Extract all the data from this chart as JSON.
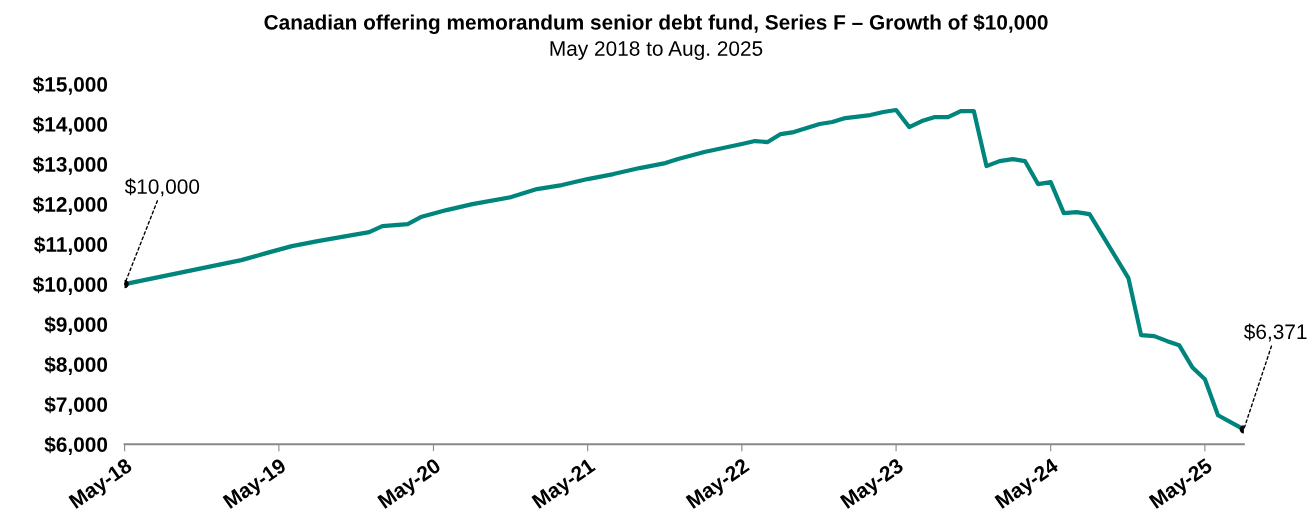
{
  "chart_data": {
    "type": "line",
    "title": "Canadian offering memorandum senior debt fund, Series F – Growth of $10,000",
    "subtitle": "May 2018 to Aug. 2025",
    "x": [
      "2018-05",
      "2019-02",
      "2019-04",
      "2019-06",
      "2019-08",
      "2019-12",
      "2020-01",
      "2020-03",
      "2020-04",
      "2020-06",
      "2020-08",
      "2020-11",
      "2021-01",
      "2021-03",
      "2021-05",
      "2021-07",
      "2021-09",
      "2021-11",
      "2021-12",
      "2022-02",
      "2022-05",
      "2022-06",
      "2022-07",
      "2022-08",
      "2022-09",
      "2022-11",
      "2022-12",
      "2023-01",
      "2023-03",
      "2023-04",
      "2023-05",
      "2023-06",
      "2023-07",
      "2023-08",
      "2023-09",
      "2023-10",
      "2023-11",
      "2023-12",
      "2024-01",
      "2024-02",
      "2024-03",
      "2024-04",
      "2024-05",
      "2024-06",
      "2024-07",
      "2024-08",
      "2024-11",
      "2024-12",
      "2025-01",
      "2025-02",
      "2025-03",
      "2025-04",
      "2025-05",
      "2025-06",
      "2025-08"
    ],
    "series": [
      {
        "color": "#00857c",
        "values": [
          10000,
          10600,
          10775,
          10950,
          11075,
          11300,
          11450,
          11500,
          11675,
          11850,
          12000,
          12175,
          12375,
          12475,
          12625,
          12750,
          12900,
          13025,
          13125,
          13300,
          13500,
          13575,
          13550,
          13750,
          13800,
          14000,
          14050,
          14150,
          14225,
          14300,
          14350,
          13925,
          14075,
          14175,
          14175,
          14325,
          14325,
          12950,
          13075,
          13125,
          13075,
          12500,
          12550,
          11775,
          11800,
          11750,
          10150,
          8725,
          8700,
          8575,
          8475,
          7925,
          7625,
          6725,
          6371
        ]
      }
    ],
    "xlim": [
      "2018-05",
      "2025-08"
    ],
    "xticks": [
      {
        "value": "2018-05",
        "label": "May-18"
      },
      {
        "value": "2019-05",
        "label": "May-19"
      },
      {
        "value": "2020-05",
        "label": "May-20"
      },
      {
        "value": "2021-05",
        "label": "May-21"
      },
      {
        "value": "2022-05",
        "label": "May-22"
      },
      {
        "value": "2023-05",
        "label": "May-23"
      },
      {
        "value": "2024-05",
        "label": "May-24"
      },
      {
        "value": "2025-05",
        "label": "May-25"
      }
    ],
    "ylim": [
      6000,
      15000
    ],
    "yticks": [
      {
        "value": 6000,
        "label": "$6,000"
      },
      {
        "value": 7000,
        "label": "$7,000"
      },
      {
        "value": 8000,
        "label": "$8,000"
      },
      {
        "value": 9000,
        "label": "$9,000"
      },
      {
        "value": 10000,
        "label": "$10,000"
      },
      {
        "value": 11000,
        "label": "$11,000"
      },
      {
        "value": 12000,
        "label": "$12,000"
      },
      {
        "value": 13000,
        "label": "$13,000"
      },
      {
        "value": 14000,
        "label": "$14,000"
      },
      {
        "value": 15000,
        "label": "$15,000"
      }
    ],
    "annotations": [
      {
        "text": "$10,000",
        "x": "2018-05",
        "y": 10000
      },
      {
        "text": "$6,371",
        "x": "2025-08",
        "y": 6371
      }
    ],
    "grid": false,
    "marker": "none",
    "line_style": "solid"
  }
}
